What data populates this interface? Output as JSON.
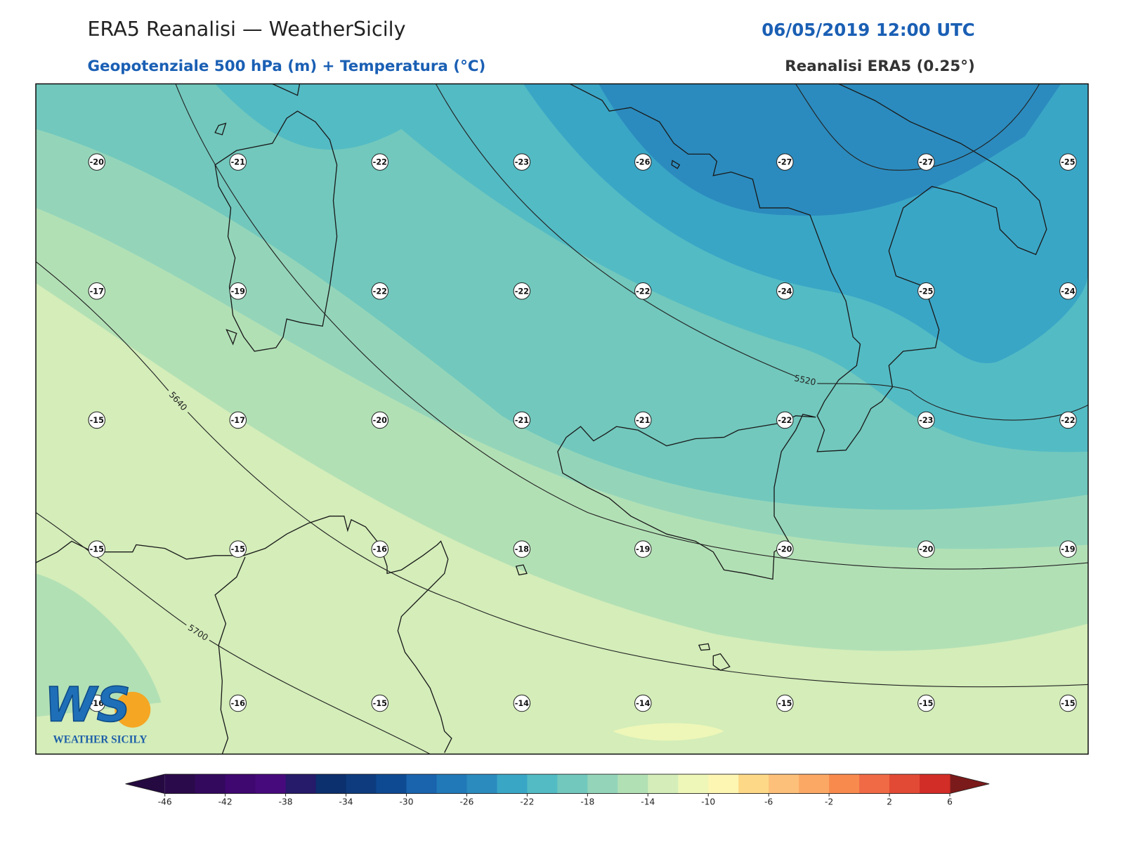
{
  "header": {
    "title": "ERA5 Reanalisi — WeatherSicily",
    "subtitle": "Geopotenziale 500 hPa (m) + Temperatura (°C)",
    "datetime": "06/05/2019 12:00 UTC",
    "source": "Reanalisi ERA5 (0.25°)"
  },
  "map": {
    "temperature_labels": [
      [
        "-20",
        "-21",
        "-22",
        "-23",
        "-26",
        "-27",
        "-27",
        "-25"
      ],
      [
        "-17",
        "-19",
        "-22",
        "-22",
        "-22",
        "-24",
        "-25",
        "-24"
      ],
      [
        "-15",
        "-17",
        "-20",
        "-21",
        "-21",
        "-22",
        "-23",
        "-22"
      ],
      [
        "-15",
        "-15",
        "-16",
        "-18",
        "-19",
        "-20",
        "-20",
        "-19"
      ],
      [
        "-16",
        "-16",
        "-15",
        "-14",
        "-14",
        "-15",
        "-15",
        "-15"
      ]
    ],
    "contour_labels": [
      "5520",
      "5640",
      "5700"
    ]
  },
  "logo": {
    "mark": "WS",
    "name": "WEATHER SICILY"
  },
  "colorbar": {
    "lim": [
      -46,
      6
    ],
    "ticks": [
      -46,
      -42,
      -38,
      -34,
      -30,
      -26,
      -22,
      -18,
      -14,
      -10,
      -6,
      -2,
      2,
      6
    ],
    "colors": [
      "#2b0a4b",
      "#33095e",
      "#3f0770",
      "#470a7d",
      "#261a6b",
      "#0c2f6e",
      "#0d3b7e",
      "#0e4a92",
      "#1a63ad",
      "#2179b8",
      "#2b8bbe",
      "#3aa6c6",
      "#53bbc4",
      "#72c8bd",
      "#94d5ba",
      "#b2e0b5",
      "#d4edb9",
      "#eef7b8",
      "#fdf6b3",
      "#fdd887",
      "#fdc07a",
      "#fca865",
      "#f88a4e",
      "#f06a45",
      "#e24a35",
      "#d22d27"
    ],
    "under_color": "#240a40",
    "over_color": "#7a1a1a"
  }
}
